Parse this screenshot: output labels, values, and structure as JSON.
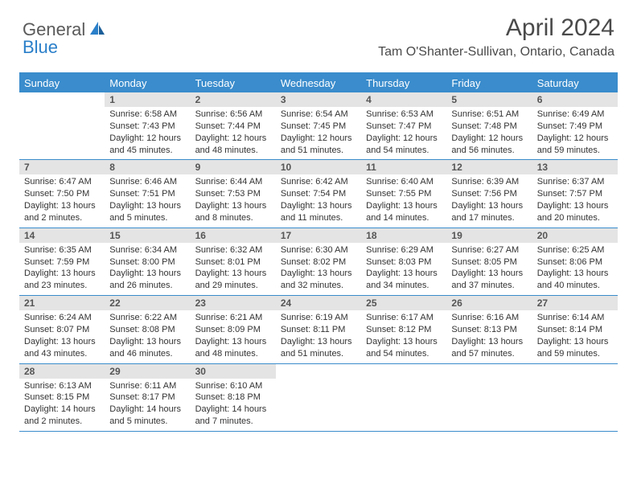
{
  "brand": {
    "part1": "General",
    "part2": "Blue"
  },
  "title": "April 2024",
  "location": "Tam O'Shanter-Sullivan, Ontario, Canada",
  "colors": {
    "header_bg": "#3a8ccc",
    "header_text": "#ffffff",
    "daynum_bg": "#e4e4e4",
    "body_text": "#333333",
    "brand_gray": "#5a5a5a",
    "brand_blue": "#2a7fc9"
  },
  "day_names": [
    "Sunday",
    "Monday",
    "Tuesday",
    "Wednesday",
    "Thursday",
    "Friday",
    "Saturday"
  ],
  "weeks": [
    [
      {
        "n": "",
        "sunrise": "",
        "sunset": "",
        "daylight": ""
      },
      {
        "n": "1",
        "sunrise": "Sunrise: 6:58 AM",
        "sunset": "Sunset: 7:43 PM",
        "daylight": "Daylight: 12 hours and 45 minutes."
      },
      {
        "n": "2",
        "sunrise": "Sunrise: 6:56 AM",
        "sunset": "Sunset: 7:44 PM",
        "daylight": "Daylight: 12 hours and 48 minutes."
      },
      {
        "n": "3",
        "sunrise": "Sunrise: 6:54 AM",
        "sunset": "Sunset: 7:45 PM",
        "daylight": "Daylight: 12 hours and 51 minutes."
      },
      {
        "n": "4",
        "sunrise": "Sunrise: 6:53 AM",
        "sunset": "Sunset: 7:47 PM",
        "daylight": "Daylight: 12 hours and 54 minutes."
      },
      {
        "n": "5",
        "sunrise": "Sunrise: 6:51 AM",
        "sunset": "Sunset: 7:48 PM",
        "daylight": "Daylight: 12 hours and 56 minutes."
      },
      {
        "n": "6",
        "sunrise": "Sunrise: 6:49 AM",
        "sunset": "Sunset: 7:49 PM",
        "daylight": "Daylight: 12 hours and 59 minutes."
      }
    ],
    [
      {
        "n": "7",
        "sunrise": "Sunrise: 6:47 AM",
        "sunset": "Sunset: 7:50 PM",
        "daylight": "Daylight: 13 hours and 2 minutes."
      },
      {
        "n": "8",
        "sunrise": "Sunrise: 6:46 AM",
        "sunset": "Sunset: 7:51 PM",
        "daylight": "Daylight: 13 hours and 5 minutes."
      },
      {
        "n": "9",
        "sunrise": "Sunrise: 6:44 AM",
        "sunset": "Sunset: 7:53 PM",
        "daylight": "Daylight: 13 hours and 8 minutes."
      },
      {
        "n": "10",
        "sunrise": "Sunrise: 6:42 AM",
        "sunset": "Sunset: 7:54 PM",
        "daylight": "Daylight: 13 hours and 11 minutes."
      },
      {
        "n": "11",
        "sunrise": "Sunrise: 6:40 AM",
        "sunset": "Sunset: 7:55 PM",
        "daylight": "Daylight: 13 hours and 14 minutes."
      },
      {
        "n": "12",
        "sunrise": "Sunrise: 6:39 AM",
        "sunset": "Sunset: 7:56 PM",
        "daylight": "Daylight: 13 hours and 17 minutes."
      },
      {
        "n": "13",
        "sunrise": "Sunrise: 6:37 AM",
        "sunset": "Sunset: 7:57 PM",
        "daylight": "Daylight: 13 hours and 20 minutes."
      }
    ],
    [
      {
        "n": "14",
        "sunrise": "Sunrise: 6:35 AM",
        "sunset": "Sunset: 7:59 PM",
        "daylight": "Daylight: 13 hours and 23 minutes."
      },
      {
        "n": "15",
        "sunrise": "Sunrise: 6:34 AM",
        "sunset": "Sunset: 8:00 PM",
        "daylight": "Daylight: 13 hours and 26 minutes."
      },
      {
        "n": "16",
        "sunrise": "Sunrise: 6:32 AM",
        "sunset": "Sunset: 8:01 PM",
        "daylight": "Daylight: 13 hours and 29 minutes."
      },
      {
        "n": "17",
        "sunrise": "Sunrise: 6:30 AM",
        "sunset": "Sunset: 8:02 PM",
        "daylight": "Daylight: 13 hours and 32 minutes."
      },
      {
        "n": "18",
        "sunrise": "Sunrise: 6:29 AM",
        "sunset": "Sunset: 8:03 PM",
        "daylight": "Daylight: 13 hours and 34 minutes."
      },
      {
        "n": "19",
        "sunrise": "Sunrise: 6:27 AM",
        "sunset": "Sunset: 8:05 PM",
        "daylight": "Daylight: 13 hours and 37 minutes."
      },
      {
        "n": "20",
        "sunrise": "Sunrise: 6:25 AM",
        "sunset": "Sunset: 8:06 PM",
        "daylight": "Daylight: 13 hours and 40 minutes."
      }
    ],
    [
      {
        "n": "21",
        "sunrise": "Sunrise: 6:24 AM",
        "sunset": "Sunset: 8:07 PM",
        "daylight": "Daylight: 13 hours and 43 minutes."
      },
      {
        "n": "22",
        "sunrise": "Sunrise: 6:22 AM",
        "sunset": "Sunset: 8:08 PM",
        "daylight": "Daylight: 13 hours and 46 minutes."
      },
      {
        "n": "23",
        "sunrise": "Sunrise: 6:21 AM",
        "sunset": "Sunset: 8:09 PM",
        "daylight": "Daylight: 13 hours and 48 minutes."
      },
      {
        "n": "24",
        "sunrise": "Sunrise: 6:19 AM",
        "sunset": "Sunset: 8:11 PM",
        "daylight": "Daylight: 13 hours and 51 minutes."
      },
      {
        "n": "25",
        "sunrise": "Sunrise: 6:17 AM",
        "sunset": "Sunset: 8:12 PM",
        "daylight": "Daylight: 13 hours and 54 minutes."
      },
      {
        "n": "26",
        "sunrise": "Sunrise: 6:16 AM",
        "sunset": "Sunset: 8:13 PM",
        "daylight": "Daylight: 13 hours and 57 minutes."
      },
      {
        "n": "27",
        "sunrise": "Sunrise: 6:14 AM",
        "sunset": "Sunset: 8:14 PM",
        "daylight": "Daylight: 13 hours and 59 minutes."
      }
    ],
    [
      {
        "n": "28",
        "sunrise": "Sunrise: 6:13 AM",
        "sunset": "Sunset: 8:15 PM",
        "daylight": "Daylight: 14 hours and 2 minutes."
      },
      {
        "n": "29",
        "sunrise": "Sunrise: 6:11 AM",
        "sunset": "Sunset: 8:17 PM",
        "daylight": "Daylight: 14 hours and 5 minutes."
      },
      {
        "n": "30",
        "sunrise": "Sunrise: 6:10 AM",
        "sunset": "Sunset: 8:18 PM",
        "daylight": "Daylight: 14 hours and 7 minutes."
      },
      {
        "n": "",
        "sunrise": "",
        "sunset": "",
        "daylight": ""
      },
      {
        "n": "",
        "sunrise": "",
        "sunset": "",
        "daylight": ""
      },
      {
        "n": "",
        "sunrise": "",
        "sunset": "",
        "daylight": ""
      },
      {
        "n": "",
        "sunrise": "",
        "sunset": "",
        "daylight": ""
      }
    ]
  ]
}
